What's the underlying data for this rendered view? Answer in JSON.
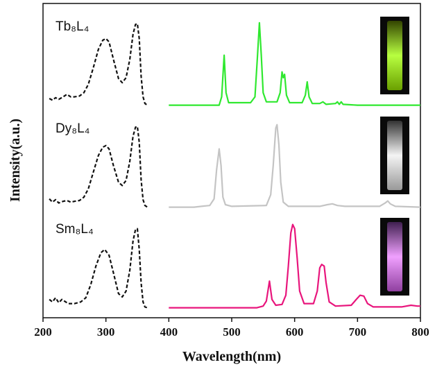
{
  "chart_data": [
    {
      "type": "line",
      "label": "Tb₈L₄",
      "xlim": [
        200,
        800
      ],
      "ylim": [
        -0.12,
        1.08
      ],
      "series": [
        {
          "color": "#111111",
          "dash": true,
          "x": [
            210,
            215,
            220,
            225,
            232,
            238,
            244,
            250,
            258,
            265,
            272,
            280,
            288,
            295,
            300,
            305,
            312,
            320,
            326,
            332,
            338,
            343,
            347,
            350,
            353,
            356,
            359,
            362,
            366
          ],
          "values": [
            0.08,
            0.06,
            0.09,
            0.07,
            0.1,
            0.13,
            0.1,
            0.1,
            0.11,
            0.15,
            0.25,
            0.45,
            0.67,
            0.78,
            0.8,
            0.76,
            0.55,
            0.32,
            0.27,
            0.33,
            0.55,
            0.85,
            0.97,
            0.98,
            0.8,
            0.35,
            0.1,
            0.02,
            0
          ]
        },
        {
          "color": "#2fe82f",
          "dash": false,
          "x": [
            400,
            480,
            484,
            488,
            491,
            495,
            530,
            537,
            541,
            544,
            547,
            550,
            555,
            572,
            577,
            580,
            582,
            584,
            587,
            592,
            612,
            617,
            620,
            623,
            628,
            640,
            645,
            650,
            665,
            668,
            671,
            674,
            677,
            700,
            800
          ],
          "values": [
            0,
            0,
            0.1,
            0.6,
            0.15,
            0.03,
            0.03,
            0.1,
            0.6,
            0.99,
            0.6,
            0.15,
            0.04,
            0.04,
            0.15,
            0.4,
            0.33,
            0.37,
            0.12,
            0.03,
            0.03,
            0.12,
            0.28,
            0.1,
            0.02,
            0.02,
            0.04,
            0.01,
            0.02,
            0.04,
            0.01,
            0.04,
            0.01,
            0,
            0
          ]
        }
      ]
    },
    {
      "type": "line",
      "label": "Dy₈L₄",
      "xlim": [
        200,
        800
      ],
      "ylim": [
        -0.12,
        1.08
      ],
      "ylabel": "Intensity(a.u.)",
      "series": [
        {
          "color": "#111111",
          "dash": true,
          "x": [
            210,
            215,
            220,
            225,
            232,
            238,
            244,
            250,
            258,
            265,
            272,
            280,
            288,
            295,
            300,
            305,
            312,
            320,
            326,
            332,
            338,
            343,
            347,
            350,
            353,
            356,
            359,
            362,
            366
          ],
          "values": [
            0.1,
            0.06,
            0.09,
            0.05,
            0.07,
            0.08,
            0.06,
            0.07,
            0.08,
            0.12,
            0.22,
            0.42,
            0.62,
            0.72,
            0.74,
            0.7,
            0.5,
            0.3,
            0.26,
            0.32,
            0.55,
            0.85,
            0.96,
            0.97,
            0.78,
            0.33,
            0.09,
            0.02,
            0
          ]
        },
        {
          "color": "#c4c4c4",
          "dash": false,
          "x": [
            400,
            440,
            452,
            465,
            472,
            476,
            480,
            483,
            486,
            490,
            500,
            555,
            562,
            566,
            570,
            572,
            575,
            578,
            582,
            590,
            640,
            652,
            660,
            668,
            680,
            735,
            744,
            748,
            752,
            760,
            800
          ],
          "values": [
            0,
            0,
            0.01,
            0.02,
            0.1,
            0.45,
            0.7,
            0.5,
            0.12,
            0.03,
            0.01,
            0.02,
            0.15,
            0.5,
            0.95,
            0.99,
            0.75,
            0.3,
            0.06,
            0.01,
            0.01,
            0.03,
            0.04,
            0.02,
            0.01,
            0.01,
            0.05,
            0.075,
            0.04,
            0.01,
            0
          ]
        }
      ]
    },
    {
      "type": "line",
      "label": "Sm₈L₄",
      "xlim": [
        200,
        800
      ],
      "ylim": [
        -0.12,
        1.08
      ],
      "xticks": [
        200,
        300,
        400,
        500,
        600,
        700,
        800
      ],
      "xlabel": "Wavelength(nm)",
      "series": [
        {
          "color": "#111111",
          "dash": true,
          "x": [
            210,
            215,
            220,
            225,
            230,
            240,
            250,
            260,
            268,
            276,
            284,
            292,
            298,
            305,
            312,
            320,
            326,
            332,
            338,
            343,
            347,
            350,
            353,
            356,
            359,
            362,
            366
          ],
          "values": [
            0.1,
            0.07,
            0.12,
            0.06,
            0.1,
            0.05,
            0.05,
            0.07,
            0.12,
            0.28,
            0.5,
            0.66,
            0.7,
            0.63,
            0.42,
            0.17,
            0.13,
            0.2,
            0.45,
            0.8,
            0.94,
            0.95,
            0.7,
            0.3,
            0.07,
            0.01,
            0
          ]
        },
        {
          "color": "#e8157c",
          "dash": false,
          "x": [
            400,
            540,
            550,
            555,
            560,
            564,
            570,
            580,
            586,
            590,
            594,
            597,
            600,
            604,
            608,
            615,
            630,
            636,
            640,
            643,
            647,
            650,
            655,
            665,
            690,
            698,
            704,
            710,
            716,
            725,
            770,
            785,
            795,
            800
          ],
          "values": [
            0,
            0,
            0.02,
            0.08,
            0.32,
            0.1,
            0.03,
            0.04,
            0.15,
            0.5,
            0.9,
            1.0,
            0.95,
            0.6,
            0.2,
            0.05,
            0.05,
            0.2,
            0.48,
            0.52,
            0.5,
            0.3,
            0.07,
            0.02,
            0.03,
            0.1,
            0.15,
            0.14,
            0.05,
            0.01,
            0.01,
            0.03,
            0.02,
            0.02
          ]
        }
      ]
    }
  ]
}
